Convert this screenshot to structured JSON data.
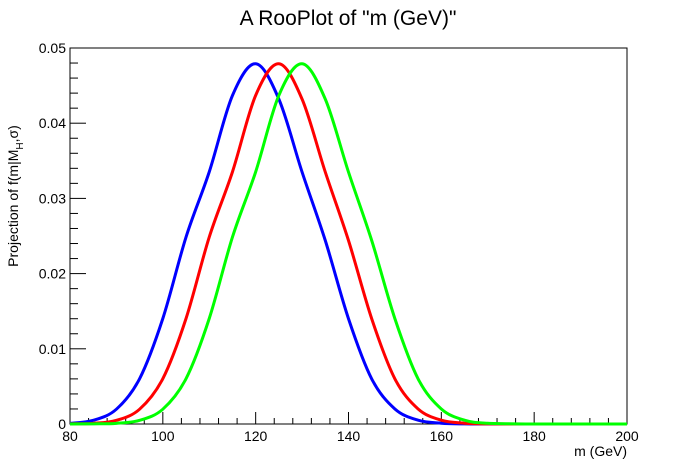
{
  "chart_data": {
    "type": "line",
    "title": "A RooPlot of \"m (GeV)\"",
    "xlabel": "m (GeV)",
    "ylabel": "Projection of f(m|M_H,σ)",
    "ylabel_parts": {
      "main": "Projection of f(m|M",
      "sub": "H",
      "tail": ",σ)"
    },
    "xlim": [
      80,
      200
    ],
    "ylim": [
      0,
      0.05
    ],
    "x_ticks": [
      80,
      100,
      120,
      140,
      160,
      180,
      200
    ],
    "x_tick_labels": [
      "80",
      "100",
      "120",
      "140",
      "160",
      "180",
      "200"
    ],
    "y_ticks": [
      0,
      0.01,
      0.02,
      0.03,
      0.04,
      0.05
    ],
    "y_tick_labels": [
      "0",
      "0.01",
      "0.02",
      "0.03",
      "0.04",
      "0.05"
    ],
    "grid": false,
    "legend": "none",
    "series": [
      {
        "color": "#0000ff",
        "x": [
          80,
          85,
          90,
          95,
          100,
          105,
          110,
          115,
          120,
          125,
          130,
          135,
          140,
          145,
          150,
          155,
          160,
          165,
          170,
          180,
          190,
          200
        ],
        "values": [
          9e-05,
          0.00049,
          0.00197,
          0.00603,
          0.01403,
          0.02486,
          0.03353,
          0.04368,
          0.0479,
          0.0432,
          0.0335,
          0.0244,
          0.014,
          0.006,
          0.002,
          0.0005,
          0.0001,
          1e-05,
          0.0,
          0.0,
          0.0,
          0.0
        ]
      },
      {
        "color": "#ff0000",
        "x": [
          80,
          85,
          90,
          95,
          100,
          105,
          110,
          115,
          120,
          125,
          130,
          135,
          140,
          145,
          150,
          155,
          160,
          165,
          170,
          180,
          190,
          200
        ],
        "values": [
          2e-05,
          9e-05,
          0.00049,
          0.00197,
          0.00603,
          0.01403,
          0.02486,
          0.03353,
          0.0437,
          0.0479,
          0.0432,
          0.0335,
          0.0244,
          0.014,
          0.006,
          0.002,
          0.0005,
          0.0001,
          1e-05,
          0.0,
          0.0,
          0.0
        ]
      },
      {
        "color": "#00ff00",
        "x": [
          80,
          85,
          90,
          95,
          100,
          105,
          110,
          115,
          120,
          125,
          130,
          135,
          140,
          145,
          150,
          155,
          160,
          165,
          170,
          180,
          190,
          200
        ],
        "values": [
          0.0,
          2e-05,
          9e-05,
          0.00049,
          0.00197,
          0.00603,
          0.01403,
          0.02486,
          0.03353,
          0.0437,
          0.0479,
          0.0432,
          0.0335,
          0.0244,
          0.014,
          0.006,
          0.002,
          0.0005,
          0.0001,
          0.0,
          0.0,
          0.0
        ]
      }
    ]
  }
}
